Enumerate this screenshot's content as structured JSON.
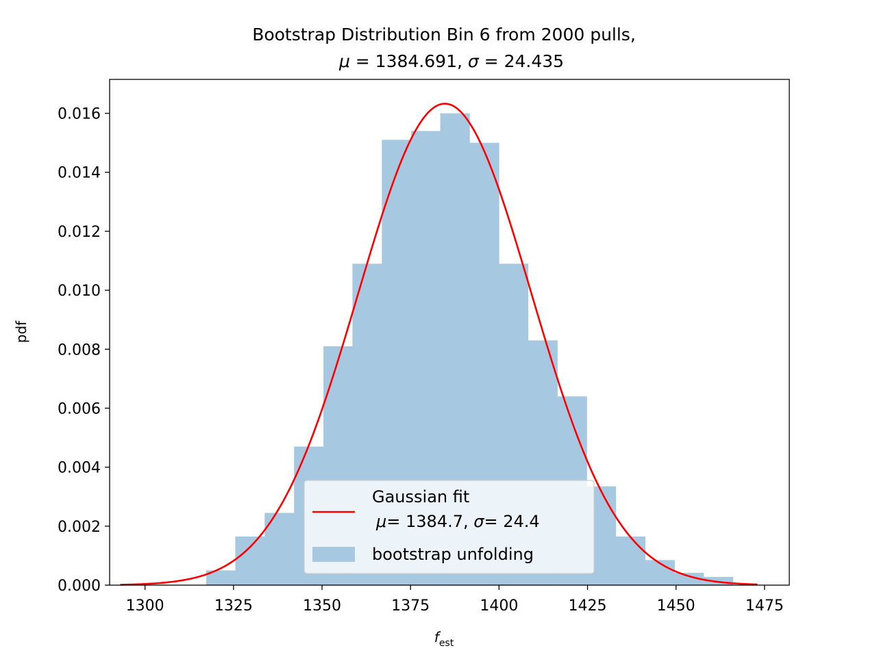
{
  "chart_data": {
    "type": "bar",
    "title_line1": "Bootstrap Distribution  Bin 6 from 2000 pulls,",
    "title_mu_symbol": "μ",
    "title_mu_value": " = 1384.691, ",
    "title_sigma_symbol": "σ",
    "title_sigma_value": " = 24.435",
    "xlabel_main": "f",
    "xlabel_sub": "est",
    "ylabel": "pdf",
    "xlim": [
      1290,
      1482
    ],
    "ylim": [
      0,
      0.01715
    ],
    "xticks": [
      1300,
      1325,
      1350,
      1375,
      1400,
      1425,
      1450,
      1475
    ],
    "xtick_labels": [
      "1300",
      "1325",
      "1350",
      "1375",
      "1400",
      "1425",
      "1450",
      "1475"
    ],
    "yticks": [
      0,
      0.002,
      0.004,
      0.006,
      0.008,
      0.01,
      0.012,
      0.014,
      0.016
    ],
    "ytick_labels": [
      "0.000",
      "0.002",
      "0.004",
      "0.006",
      "0.008",
      "0.010",
      "0.012",
      "0.014",
      "0.016"
    ],
    "histogram": {
      "name": "bootstrap unfolding",
      "color": "#a6c8e0",
      "bin_edges": [
        1317.3,
        1325.5,
        1333.8,
        1342.1,
        1350.4,
        1358.6,
        1366.9,
        1375.2,
        1383.4,
        1391.7,
        1400.0,
        1408.2,
        1416.5,
        1424.8,
        1433.0,
        1441.3,
        1449.6,
        1457.8,
        1466.1
      ],
      "densities": [
        0.0005,
        0.00165,
        0.00245,
        0.0047,
        0.0081,
        0.0109,
        0.0151,
        0.0154,
        0.016,
        0.015,
        0.0109,
        0.0083,
        0.0064,
        0.00335,
        0.00165,
        0.00085,
        0.00042,
        0.00028
      ]
    },
    "fit": {
      "name_line1": "Gaussian fit",
      "name_line2_mu_symbol": "μ",
      "name_line2_mu_value": "= 1384.7, ",
      "name_line2_sigma_symbol": "σ",
      "name_line2_sigma_value": "= 24.4",
      "mu": 1384.691,
      "sigma": 24.435,
      "x_range": [
        1293,
        1473
      ],
      "color": "#ff0000"
    },
    "legend_placement": "lower center",
    "grid": false
  }
}
